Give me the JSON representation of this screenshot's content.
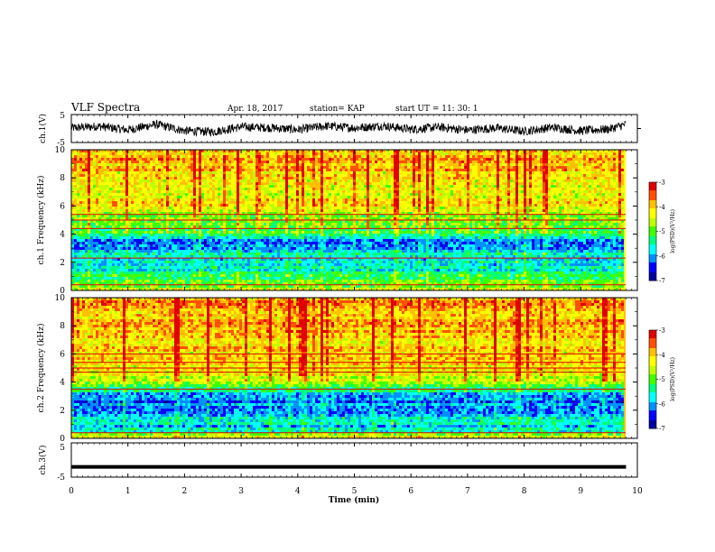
{
  "header": {
    "title": "VLF Spectra",
    "date": "Apr. 18, 2017",
    "station": "station= KAP",
    "start": "start UT =   11: 30: 1"
  },
  "colors": {
    "spectrogram_colormap": [
      "#0000a0",
      "#0000ff",
      "#0090ff",
      "#00ffff",
      "#00ff80",
      "#40ff00",
      "#c0ff00",
      "#ffff00",
      "#ffc000",
      "#ff5000",
      "#e00000",
      "#ffffff"
    ],
    "trace": "#000000"
  },
  "chart_data": [
    {
      "type": "line",
      "panel": "ch1-waveform",
      "ylabel": "ch.1(V)",
      "xlim": [
        0,
        10
      ],
      "ylim": [
        -5,
        5
      ],
      "yticks": [
        "5",
        "-5"
      ],
      "x": [
        0,
        0.5,
        1,
        1.5,
        2,
        2.5,
        3,
        3.5,
        4,
        4.5,
        5,
        5.5,
        6,
        6.5,
        7,
        7.5,
        8,
        8.5,
        9,
        9.5,
        9.8
      ],
      "values": [
        0.2,
        0.8,
        -0.5,
        1.5,
        -0.8,
        -1.2,
        0.6,
        0.3,
        -0.4,
        0.9,
        0.2,
        1.0,
        -0.3,
        0.5,
        -0.6,
        0.2,
        -1.0,
        0.4,
        -0.8,
        -0.2,
        1.5
      ]
    },
    {
      "type": "heatmap",
      "panel": "ch1-spectrogram",
      "ylabel": "ch.1 Frequency (kHz)",
      "xlim": [
        0,
        10
      ],
      "ylim": [
        0,
        10
      ],
      "yticks": [
        "0",
        "2",
        "4",
        "6",
        "8",
        "10"
      ],
      "colorbar": {
        "label": "log(PSD)(V²/Hz)",
        "range": [
          -7,
          -3
        ],
        "ticks": [
          "-3",
          "-4",
          "-5",
          "-6",
          "-7"
        ]
      },
      "freq_profile_khz": [
        0,
        0.5,
        1,
        1.5,
        2,
        2.5,
        3,
        3.5,
        4,
        4.5,
        5,
        5.5,
        6,
        7,
        8,
        9,
        10
      ],
      "log_psd_profile": [
        -4.2,
        -5.0,
        -5.3,
        -5.6,
        -5.7,
        -5.6,
        -6.3,
        -6.2,
        -5.4,
        -5.0,
        -4.8,
        -4.6,
        -4.3,
        -4.3,
        -4.1,
        -4.0,
        -4.0
      ],
      "lines_khz": [
        0.4,
        2.3,
        4.4,
        5.0,
        5.4
      ]
    },
    {
      "type": "heatmap",
      "panel": "ch2-spectrogram",
      "ylabel": "ch.2 Frequency (kHz)",
      "xlim": [
        0,
        10
      ],
      "ylim": [
        0,
        10
      ],
      "yticks": [
        "0",
        "2",
        "4",
        "6",
        "8",
        "10"
      ],
      "colorbar": {
        "label": "log(PSD)(V²/Hz)",
        "range": [
          -7,
          -3
        ],
        "ticks": [
          "-3",
          "-4",
          "-5",
          "-6",
          "-7"
        ]
      },
      "freq_profile_khz": [
        0,
        0.5,
        1,
        1.5,
        2,
        2.5,
        3,
        3.5,
        4,
        4.5,
        5,
        5.5,
        6,
        7,
        8,
        9,
        10
      ],
      "log_psd_profile": [
        -4.0,
        -5.8,
        -5.7,
        -5.8,
        -6.0,
        -6.1,
        -6.2,
        -5.3,
        -4.6,
        -4.4,
        -4.3,
        -4.2,
        -4.1,
        -4.1,
        -4.0,
        -3.9,
        -3.9
      ],
      "lines_khz": [
        0.4,
        3.5,
        4.7,
        5.0,
        5.4,
        6.0
      ]
    },
    {
      "type": "line",
      "panel": "ch3-waveform",
      "ylabel": "ch.3(V)",
      "xlim": [
        0,
        10
      ],
      "ylim": [
        -5,
        5
      ],
      "yticks": [
        "5",
        "-5"
      ],
      "x": [
        0,
        9.8
      ],
      "values": [
        -2,
        -2
      ]
    }
  ],
  "xaxis": {
    "label": "Time  (min)",
    "ticks": [
      "0",
      "1",
      "2",
      "3",
      "4",
      "5",
      "6",
      "7",
      "8",
      "9",
      "10"
    ]
  }
}
